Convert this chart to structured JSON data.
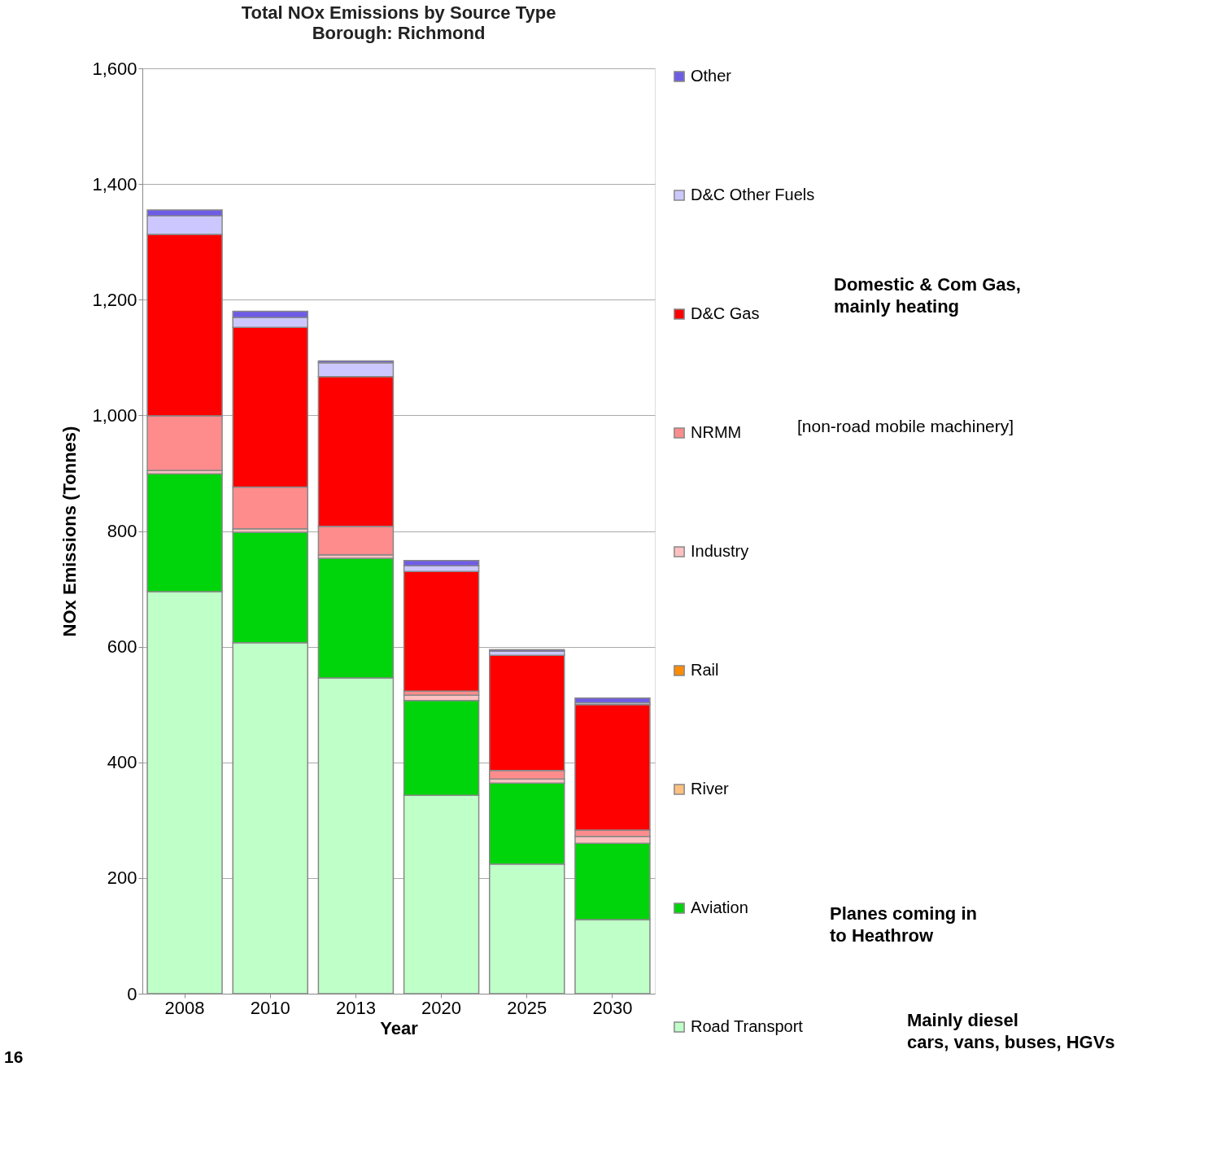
{
  "chart_data": {
    "type": "bar",
    "stacked": true,
    "title": "Total NOx Emissions  by Source Type",
    "subtitle": "Borough: Richmond",
    "xlabel": "Year",
    "ylabel": "NOx Emissions  (Tonnes)",
    "categories": [
      "2008",
      "2010",
      "2013",
      "2020",
      "2025",
      "2030"
    ],
    "series": [
      {
        "name": "Road Transport",
        "color": "#bfffc8",
        "values": [
          695,
          607,
          546,
          343,
          224,
          128
        ]
      },
      {
        "name": "Aviation",
        "color": "#00d40a",
        "values": [
          204,
          191,
          207,
          164,
          140,
          132
        ]
      },
      {
        "name": "River",
        "color": "#ffc080",
        "values": [
          null,
          null,
          null,
          null,
          null,
          null
        ]
      },
      {
        "name": "Rail",
        "color": "#ff8c00",
        "values": [
          null,
          null,
          null,
          null,
          null,
          null
        ]
      },
      {
        "name": "Industry",
        "color": "#ffc0c0",
        "values": [
          6,
          6,
          6,
          9,
          7,
          12
        ]
      },
      {
        "name": "NRMM",
        "color": "#ff8c8c",
        "values": [
          94,
          72,
          49,
          7,
          15,
          11
        ]
      },
      {
        "name": "D&C Gas",
        "color": "#ff0000",
        "values": [
          314,
          276,
          259,
          207,
          199,
          217
        ]
      },
      {
        "name": "D&C Other Fuels",
        "color": "#ccc8ff",
        "values": [
          32,
          17,
          24,
          10,
          7,
          3
        ]
      },
      {
        "name": "Other",
        "color": "#6e5ce6",
        "values": [
          10,
          11,
          3,
          9,
          3,
          8
        ]
      }
    ],
    "ylim": [
      0,
      1600
    ],
    "yticks": [
      0,
      {
        "value": 200,
        "label": "200"
      },
      {
        "value": 400,
        "label": "400"
      },
      {
        "value": 600,
        "label": "600"
      },
      {
        "value": 800,
        "label": "800"
      },
      {
        "value": 1000,
        "label": "1,000"
      },
      {
        "value": 1200,
        "label": "1,200"
      },
      {
        "value": 1400,
        "label": "1,400"
      },
      {
        "value": 1600,
        "label": "1,600"
      }
    ],
    "grid": "y",
    "legend": "right",
    "annotations": [
      "Domestic & Com Gas,\nmainly heating",
      "[non-road mobile machinery]",
      "Planes coming in\nto Heathrow",
      "Mainly diesel\ncars, vans, buses, HGVs",
      "16"
    ]
  }
}
